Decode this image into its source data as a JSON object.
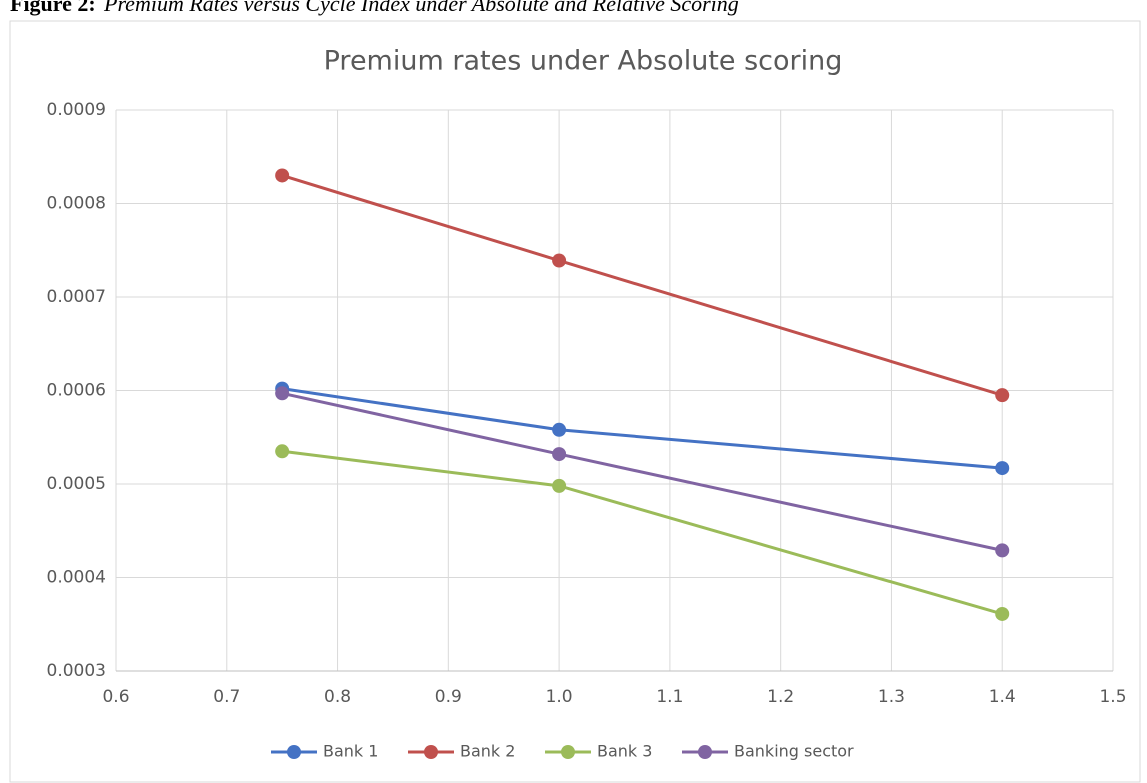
{
  "caption": {
    "label": "Figure 2:",
    "text": "Premium Rates versus Cycle Index under Absolute and Relative Scoring"
  },
  "chart_data": {
    "type": "line",
    "title": "Premium rates under Absolute scoring",
    "x": [
      0.75,
      {
        "value": 1,
        "label": "1.0"
      },
      1.4
    ],
    "series": [
      {
        "name": "Bank 1",
        "color": "#4472c4",
        "values": [
          0.000602,
          0.000558,
          0.000517
        ]
      },
      {
        "name": "Bank 2",
        "color": "#c0504d",
        "values": [
          0.00083,
          0.000739,
          0.000595
        ]
      },
      {
        "name": "Bank 3",
        "color": "#9bbb59",
        "values": [
          0.000535,
          0.000498,
          0.000361
        ]
      },
      {
        "name": "Banking sector",
        "color": "#8064a2",
        "values": [
          0.000597,
          0.000532,
          0.000429
        ]
      }
    ],
    "xlim": [
      0.6,
      1.5
    ],
    "ylim": [
      0.0003,
      0.0009
    ],
    "xticks": [
      0.6,
      0.7,
      0.8,
      0.9,
      {
        "value": 1,
        "label": "1.0"
      },
      1.1,
      1.2,
      1.3,
      1.4,
      1.5
    ],
    "yticks": [
      0.0003,
      0.0004,
      0.0005,
      0.0006,
      0.0007,
      0.0008,
      0.0009
    ],
    "grid": true,
    "legend": "bottom"
  }
}
